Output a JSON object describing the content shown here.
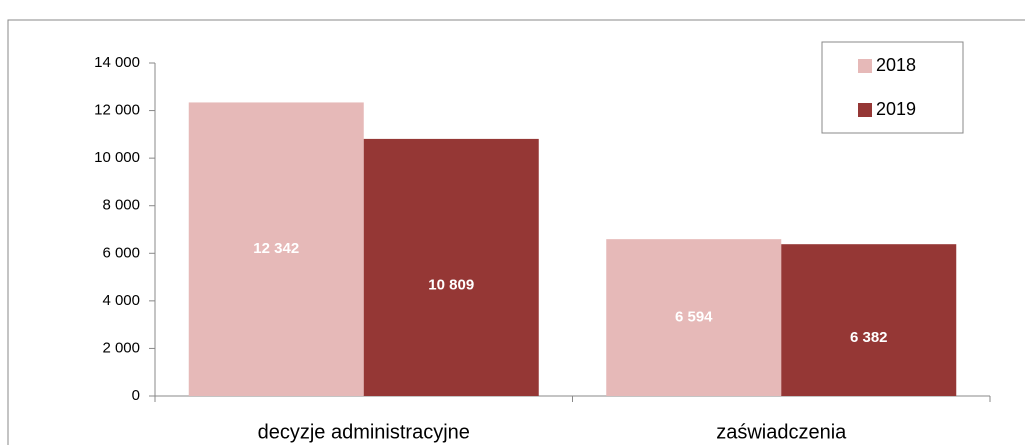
{
  "chart_data": {
    "type": "bar",
    "categories": [
      "decyzje administracyjne",
      "zaświadczenia"
    ],
    "series": [
      {
        "name": "2018",
        "color": "#e6b9b8",
        "values": [
          12342,
          6594
        ],
        "value_labels": [
          "12 342",
          "6 594"
        ]
      },
      {
        "name": "2019",
        "color": "#953735",
        "values": [
          10809,
          6382
        ],
        "value_labels": [
          "10 809",
          "6 382"
        ]
      }
    ],
    "ylim": [
      0,
      14000
    ],
    "yticks": [
      0,
      {
        "value": 2000,
        "label": "2 000"
      },
      {
        "value": 4000,
        "label": "4 000"
      },
      {
        "value": 6000,
        "label": "6 000"
      },
      {
        "value": 8000,
        "label": "8 000"
      },
      {
        "value": 10000,
        "label": "10 000"
      },
      {
        "value": 12000,
        "label": "12 000"
      },
      {
        "value": 14000,
        "label": "14 000"
      }
    ],
    "legend": "top-right"
  }
}
